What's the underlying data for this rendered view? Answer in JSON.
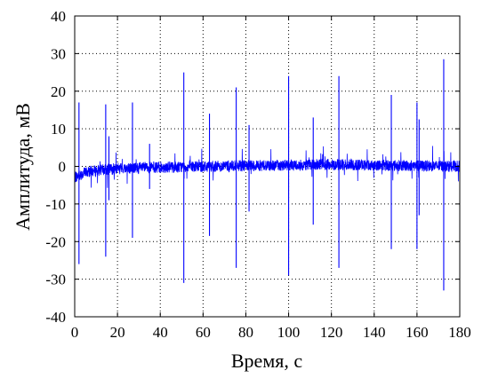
{
  "chart_data": {
    "type": "line",
    "title": "",
    "xlabel": "Время, с",
    "ylabel": "Амплитуда, мВ",
    "xlim": [
      0,
      180
    ],
    "ylim": [
      -40,
      40
    ],
    "xticks": [
      0,
      20,
      40,
      60,
      80,
      100,
      120,
      140,
      160,
      180
    ],
    "yticks": [
      -40,
      -30,
      -20,
      -10,
      0,
      10,
      20,
      30,
      40
    ],
    "grid": true,
    "legend": "none",
    "series": [
      {
        "color": "#0000ff",
        "baseline": [
          [
            0,
            -3
          ],
          [
            5,
            -1.5
          ],
          [
            20,
            -0.5
          ],
          [
            60,
            0
          ],
          [
            120,
            0.5
          ],
          [
            180,
            0
          ]
        ],
        "noise_band_mv": 1.5,
        "spikes": [
          {
            "x": 2.0,
            "max": 17,
            "min": -26
          },
          {
            "x": 14.5,
            "max": 16.5,
            "min": -24
          },
          {
            "x": 16.0,
            "max": 8,
            "min": -9
          },
          {
            "x": 27.0,
            "max": 17,
            "min": -19
          },
          {
            "x": 35.0,
            "max": 6,
            "min": -6
          },
          {
            "x": 51.0,
            "max": 25,
            "min": -31
          },
          {
            "x": 63.0,
            "max": 14,
            "min": -18.5
          },
          {
            "x": 75.5,
            "max": 21,
            "min": -27
          },
          {
            "x": 81.5,
            "max": 11,
            "min": -12
          },
          {
            "x": 100.0,
            "max": 24,
            "min": -29
          },
          {
            "x": 111.5,
            "max": 13,
            "min": -15.5
          },
          {
            "x": 123.5,
            "max": 24,
            "min": -27
          },
          {
            "x": 148.0,
            "max": 19,
            "min": -22
          },
          {
            "x": 160.0,
            "max": 17,
            "min": -22
          },
          {
            "x": 161.0,
            "max": 12.5,
            "min": -13
          },
          {
            "x": 172.5,
            "max": 28.5,
            "min": -33
          }
        ]
      }
    ]
  }
}
